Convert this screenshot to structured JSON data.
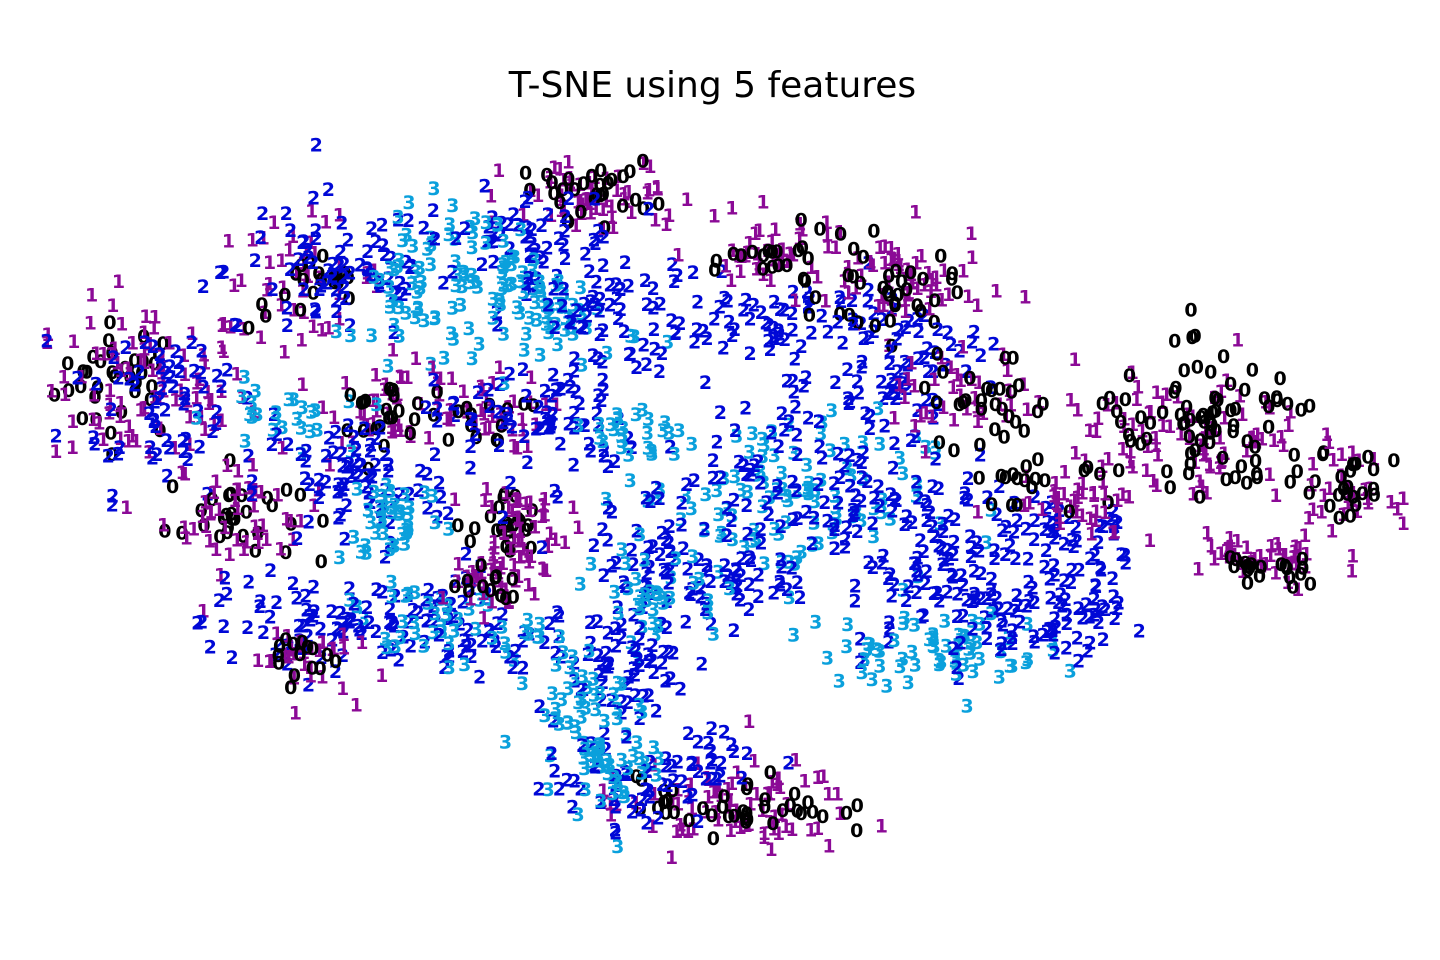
{
  "chart_data": {
    "type": "scatter",
    "title": "T-SNE using 5 features",
    "xlabel": "",
    "ylabel": "",
    "axes_visible": false,
    "grid": false,
    "legend": "none",
    "marker_style": "digit labels (class number drawn as text)",
    "point_count_note": "approximate; several thousand overlapping digit markers",
    "class_colors": {
      "0": "#000000",
      "1": "#8b0a96",
      "2": "#0008d6",
      "3": "#0aa0dc"
    },
    "xlim": [
      0,
      100
    ],
    "ylim": [
      0,
      100
    ],
    "clusters": [
      {
        "label": "0",
        "cx": 6,
        "cy": 65,
        "rx": 4,
        "ry": 6,
        "n": 35
      },
      {
        "label": "1",
        "cx": 8,
        "cy": 64,
        "rx": 6,
        "ry": 9,
        "n": 90
      },
      {
        "label": "2",
        "cx": 9,
        "cy": 63,
        "rx": 6,
        "ry": 10,
        "n": 70
      },
      {
        "label": "0",
        "cx": 14,
        "cy": 48,
        "rx": 4,
        "ry": 5,
        "n": 30
      },
      {
        "label": "1",
        "cx": 15,
        "cy": 48,
        "rx": 5,
        "ry": 6,
        "n": 50
      },
      {
        "label": "1",
        "cx": 19,
        "cy": 78,
        "rx": 5,
        "ry": 6,
        "n": 45
      },
      {
        "label": "0",
        "cx": 20,
        "cy": 76,
        "rx": 4,
        "ry": 4,
        "n": 20
      },
      {
        "label": "2",
        "cx": 22,
        "cy": 79,
        "rx": 7,
        "ry": 8,
        "n": 70
      },
      {
        "label": "3",
        "cx": 28,
        "cy": 76,
        "rx": 4,
        "ry": 9,
        "n": 55
      },
      {
        "label": "1",
        "cx": 26,
        "cy": 62,
        "rx": 4,
        "ry": 4,
        "n": 40
      },
      {
        "label": "0",
        "cx": 25,
        "cy": 61,
        "rx": 3,
        "ry": 3,
        "n": 20
      },
      {
        "label": "3",
        "cx": 17,
        "cy": 60,
        "rx": 4,
        "ry": 4,
        "n": 25
      },
      {
        "label": "2",
        "cx": 23,
        "cy": 52,
        "rx": 6,
        "ry": 7,
        "n": 80
      },
      {
        "label": "3",
        "cx": 26,
        "cy": 48,
        "rx": 3,
        "ry": 5,
        "n": 40
      },
      {
        "label": "0",
        "cx": 34,
        "cy": 46,
        "rx": 2,
        "ry": 4,
        "n": 25
      },
      {
        "label": "1",
        "cx": 35,
        "cy": 46,
        "rx": 3,
        "ry": 6,
        "n": 55
      },
      {
        "label": "1",
        "cx": 32,
        "cy": 61,
        "rx": 4,
        "ry": 4,
        "n": 35
      },
      {
        "label": "0",
        "cx": 32,
        "cy": 60,
        "rx": 3,
        "ry": 3,
        "n": 15
      },
      {
        "label": "2",
        "cx": 36,
        "cy": 60,
        "rx": 6,
        "ry": 6,
        "n": 60
      },
      {
        "label": "1",
        "cx": 41,
        "cy": 88,
        "rx": 6,
        "ry": 4,
        "n": 60
      },
      {
        "label": "0",
        "cx": 40,
        "cy": 89,
        "rx": 4,
        "ry": 3,
        "n": 30
      },
      {
        "label": "2",
        "cx": 35,
        "cy": 83,
        "rx": 6,
        "ry": 5,
        "n": 55
      },
      {
        "label": "3",
        "cx": 33,
        "cy": 79,
        "rx": 3,
        "ry": 6,
        "n": 30
      },
      {
        "label": "3",
        "cx": 38,
        "cy": 73,
        "rx": 5,
        "ry": 5,
        "n": 55
      },
      {
        "label": "2",
        "cx": 42,
        "cy": 73,
        "rx": 6,
        "ry": 7,
        "n": 70
      },
      {
        "label": "2",
        "cx": 55,
        "cy": 72,
        "rx": 8,
        "ry": 5,
        "n": 70
      },
      {
        "label": "1",
        "cx": 54,
        "cy": 81,
        "rx": 5,
        "ry": 4,
        "n": 45
      },
      {
        "label": "0",
        "cx": 54,
        "cy": 80,
        "rx": 3,
        "ry": 3,
        "n": 20
      },
      {
        "label": "1",
        "cx": 63,
        "cy": 77,
        "rx": 5,
        "ry": 6,
        "n": 55
      },
      {
        "label": "0",
        "cx": 62,
        "cy": 76,
        "rx": 4,
        "ry": 5,
        "n": 35
      },
      {
        "label": "2",
        "cx": 63,
        "cy": 67,
        "rx": 5,
        "ry": 5,
        "n": 45
      },
      {
        "label": "3",
        "cx": 54,
        "cy": 50,
        "rx": 9,
        "ry": 9,
        "n": 110
      },
      {
        "label": "2",
        "cx": 55,
        "cy": 52,
        "rx": 12,
        "ry": 10,
        "n": 140
      },
      {
        "label": "3",
        "cx": 44,
        "cy": 58,
        "rx": 3,
        "ry": 4,
        "n": 25
      },
      {
        "label": "2",
        "cx": 66,
        "cy": 41,
        "rx": 6,
        "ry": 9,
        "n": 80
      },
      {
        "label": "2",
        "cx": 48,
        "cy": 40,
        "rx": 7,
        "ry": 6,
        "n": 80
      },
      {
        "label": "3",
        "cx": 45,
        "cy": 38,
        "rx": 4,
        "ry": 5,
        "n": 35
      },
      {
        "label": "2",
        "cx": 42,
        "cy": 29,
        "rx": 5,
        "ry": 5,
        "n": 55
      },
      {
        "label": "3",
        "cx": 39,
        "cy": 24,
        "rx": 3,
        "ry": 6,
        "n": 40
      },
      {
        "label": "2",
        "cx": 30,
        "cy": 34,
        "rx": 7,
        "ry": 6,
        "n": 75
      },
      {
        "label": "3",
        "cx": 29,
        "cy": 34,
        "rx": 6,
        "ry": 4,
        "n": 45
      },
      {
        "label": "2",
        "cx": 19,
        "cy": 34,
        "rx": 6,
        "ry": 5,
        "n": 55
      },
      {
        "label": "1",
        "cx": 19,
        "cy": 30,
        "rx": 3,
        "ry": 4,
        "n": 30
      },
      {
        "label": "0",
        "cx": 18,
        "cy": 30,
        "rx": 3,
        "ry": 3,
        "n": 15
      },
      {
        "label": "1",
        "cx": 33,
        "cy": 39,
        "rx": 3,
        "ry": 3,
        "n": 25
      },
      {
        "label": "0",
        "cx": 33,
        "cy": 39,
        "rx": 2,
        "ry": 2,
        "n": 12
      },
      {
        "label": "1",
        "cx": 50,
        "cy": 11,
        "rx": 8,
        "ry": 5,
        "n": 80
      },
      {
        "label": "0",
        "cx": 51,
        "cy": 11,
        "rx": 6,
        "ry": 3,
        "n": 40
      },
      {
        "label": "2",
        "cx": 43,
        "cy": 15,
        "rx": 5,
        "ry": 6,
        "n": 55
      },
      {
        "label": "3",
        "cx": 42,
        "cy": 17,
        "rx": 3,
        "ry": 6,
        "n": 40
      },
      {
        "label": "2",
        "cx": 50,
        "cy": 17,
        "rx": 3,
        "ry": 3,
        "n": 20
      },
      {
        "label": "3",
        "cx": 65,
        "cy": 31,
        "rx": 7,
        "ry": 4,
        "n": 65
      },
      {
        "label": "2",
        "cx": 71,
        "cy": 35,
        "rx": 5,
        "ry": 5,
        "n": 45
      },
      {
        "label": "2",
        "cx": 74,
        "cy": 46,
        "rx": 5,
        "ry": 4,
        "n": 40
      },
      {
        "label": "1",
        "cx": 68,
        "cy": 63,
        "rx": 5,
        "ry": 5,
        "n": 40
      },
      {
        "label": "0",
        "cx": 69,
        "cy": 62,
        "rx": 4,
        "ry": 5,
        "n": 30
      },
      {
        "label": "1",
        "cx": 84,
        "cy": 57,
        "rx": 7,
        "ry": 8,
        "n": 95
      },
      {
        "label": "0",
        "cx": 86,
        "cy": 58,
        "rx": 8,
        "ry": 8,
        "n": 85
      },
      {
        "label": "1",
        "cx": 89,
        "cy": 42,
        "rx": 5,
        "ry": 3,
        "n": 40
      },
      {
        "label": "0",
        "cx": 90,
        "cy": 41,
        "rx": 3,
        "ry": 2,
        "n": 20
      },
      {
        "label": "2",
        "cx": 76,
        "cy": 37,
        "rx": 4,
        "ry": 5,
        "n": 35
      },
      {
        "label": "1",
        "cx": 75,
        "cy": 51,
        "rx": 4,
        "ry": 4,
        "n": 30
      },
      {
        "label": "0",
        "cx": 72,
        "cy": 52,
        "rx": 3,
        "ry": 3,
        "n": 15
      },
      {
        "label": "1",
        "cx": 95,
        "cy": 51,
        "rx": 3,
        "ry": 4,
        "n": 30
      },
      {
        "label": "0",
        "cx": 96,
        "cy": 51,
        "rx": 2,
        "ry": 3,
        "n": 20
      }
    ]
  }
}
